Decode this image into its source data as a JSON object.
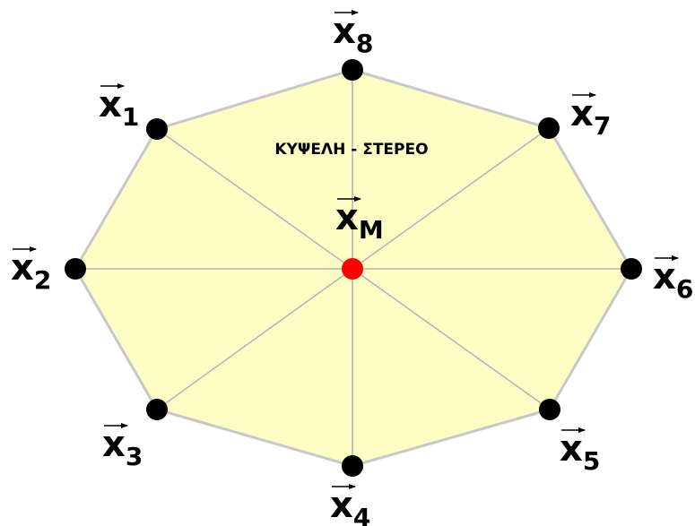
{
  "title": "ΚΥΨΕΛΗ - ΣΤΕΡΕΟ",
  "center": {
    "label": "x",
    "sub": "M"
  },
  "nodes": [
    {
      "label": "x",
      "sub": "1"
    },
    {
      "label": "x",
      "sub": "2"
    },
    {
      "label": "x",
      "sub": "3"
    },
    {
      "label": "x",
      "sub": "4"
    },
    {
      "label": "x",
      "sub": "5"
    },
    {
      "label": "x",
      "sub": "6"
    },
    {
      "label": "x",
      "sub": "7"
    },
    {
      "label": "x",
      "sub": "8"
    }
  ]
}
